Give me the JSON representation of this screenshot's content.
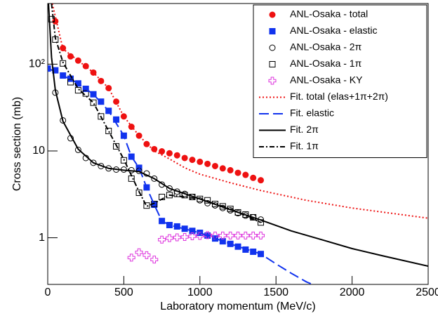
{
  "chart_data": {
    "type": "scatter",
    "x_label": "Laboratory momentum (MeV/c)",
    "y_label": "Cross section (mb)",
    "xlim": [
      0,
      2500
    ],
    "xticks": [
      0,
      500,
      1000,
      1500,
      2000,
      2500
    ],
    "ylim": [
      0.29,
      500
    ],
    "log_y": true,
    "yticks": [
      1,
      10,
      {
        "value": 100,
        "label": "10²"
      }
    ],
    "legend": "upper right",
    "series": [
      {
        "name": "ANL-Osaka - total",
        "color": "#ee1111",
        "marker": "circle-filled",
        "x": [
          50,
          100,
          150,
          200,
          250,
          300,
          350,
          400,
          450,
          500,
          550,
          600,
          650,
          700,
          750,
          800,
          850,
          900,
          950,
          1000,
          1050,
          1100,
          1150,
          1200,
          1250,
          1300,
          1350,
          1400
        ],
        "values": [
          312,
          153,
          123,
          110,
          95,
          80,
          64,
          53,
          37,
          25,
          19,
          15,
          12,
          10.5,
          9.9,
          9.4,
          8.9,
          8.3,
          7.9,
          7.5,
          7.1,
          6.7,
          6.3,
          6.0,
          5.6,
          5.3,
          4.9,
          4.6
        ]
      },
      {
        "name": "ANL-Osaka - elastic",
        "color": "#1133ee",
        "marker": "square-filled",
        "x": [
          0,
          50,
          100,
          150,
          200,
          250,
          300,
          350,
          400,
          450,
          500,
          550,
          600,
          650,
          700,
          750,
          800,
          850,
          900,
          950,
          1000,
          1050,
          1100,
          1150,
          1200,
          1250,
          1300,
          1350,
          1400
        ],
        "values": [
          89,
          85,
          74,
          68,
          60,
          52,
          45,
          37,
          29,
          23,
          15,
          8.6,
          6.4,
          3.8,
          2.4,
          1.56,
          1.4,
          1.35,
          1.27,
          1.2,
          1.14,
          1.06,
          0.98,
          0.91,
          0.85,
          0.79,
          0.73,
          0.69,
          0.65
        ]
      },
      {
        "name": "ANL-Osaka - 2π",
        "color": "#000000",
        "marker": "circle-open",
        "x": [
          50,
          100,
          150,
          200,
          250,
          300,
          350,
          400,
          450,
          500,
          550,
          600,
          650,
          700,
          750,
          800,
          850,
          900,
          950,
          1000,
          1050,
          1100,
          1150,
          1200,
          1250,
          1300,
          1350,
          1400
        ],
        "values": [
          47,
          22.5,
          14,
          10.3,
          8.3,
          7.3,
          6.7,
          6.3,
          6.1,
          6.1,
          6.0,
          5.9,
          5.5,
          4.8,
          4.1,
          3.7,
          3.4,
          3.2,
          2.95,
          2.7,
          2.5,
          2.36,
          2.2,
          2.07,
          1.92,
          1.8,
          1.72,
          1.62
        ]
      },
      {
        "name": "ANL-Osaka - 1π",
        "color": "#000000",
        "marker": "square-open",
        "x": [
          25,
          50,
          100,
          150,
          200,
          250,
          300,
          350,
          400,
          450,
          500,
          550,
          600,
          650,
          700,
          750,
          800,
          850,
          900,
          950,
          1000,
          1050,
          1100,
          1150,
          1200,
          1250,
          1300,
          1350,
          1400
        ],
        "values": [
          330,
          192,
          102,
          62,
          50,
          46,
          36,
          25,
          17,
          11.3,
          7.8,
          4.8,
          3.3,
          2.35,
          2.45,
          2.95,
          3.1,
          3.2,
          3.1,
          2.95,
          2.8,
          2.7,
          2.45,
          2.3,
          2.15,
          1.96,
          1.85,
          1.72,
          1.5
        ]
      },
      {
        "name": "ANL-Osaka - KY",
        "color": "#dd33dd",
        "marker": "cross-open",
        "x": [
          550,
          600,
          650,
          700,
          750,
          800,
          850,
          900,
          950,
          1000,
          1050,
          1100,
          1150,
          1200,
          1250,
          1300,
          1350,
          1400
        ],
        "values": [
          0.59,
          0.68,
          0.63,
          0.56,
          0.95,
          0.99,
          1.01,
          1.02,
          1.04,
          1.05,
          1.07,
          1.06,
          1.06,
          1.06,
          1.06,
          1.06,
          1.06,
          1.06
        ]
      },
      {
        "name": "Fit. total (elas+1π+2π)",
        "color": "#ee1111",
        "line": "dotted",
        "x": [
          30,
          100,
          200,
          300,
          400,
          500,
          600,
          700,
          800,
          900,
          1000,
          1200,
          1400,
          1700,
          2000,
          2500
        ],
        "values": [
          500,
          150,
          110,
          80,
          53,
          25,
          15,
          10,
          8.1,
          6.4,
          5.4,
          4.3,
          3.5,
          2.7,
          2.2,
          1.68
        ]
      },
      {
        "name": "Fit. elastic",
        "color": "#1133ee",
        "line": "dashed",
        "x": [
          0,
          100,
          200,
          300,
          400,
          500,
          550,
          600,
          650,
          700,
          750,
          800,
          1000,
          1200,
          1400,
          1500,
          1600,
          1700,
          1740
        ],
        "values": [
          90,
          74,
          60,
          45,
          29,
          15,
          8.6,
          6.4,
          3.8,
          2.4,
          1.56,
          1.4,
          1.14,
          0.85,
          0.65,
          0.5,
          0.39,
          0.31,
          0.29
        ]
      },
      {
        "name": "Fit. 2π",
        "color": "#000000",
        "line": "solid",
        "x": [
          5,
          25,
          50,
          100,
          200,
          300,
          400,
          500,
          600,
          700,
          800,
          1000,
          1200,
          1400,
          1600,
          1800,
          2000,
          2200,
          2500
        ],
        "values": [
          500,
          120,
          50,
          22,
          10.5,
          7.3,
          6.3,
          6.0,
          5.8,
          4.8,
          3.7,
          2.8,
          2.1,
          1.6,
          1.2,
          0.95,
          0.75,
          0.62,
          0.47
        ]
      },
      {
        "name": "Fit. 1π",
        "color": "#000000",
        "line": "dashdot",
        "x": [
          25,
          50,
          100,
          200,
          300,
          400,
          500,
          600,
          650,
          700,
          800,
          1000,
          1200,
          1400
        ],
        "values": [
          500,
          200,
          105,
          52,
          36,
          17,
          8,
          3.4,
          2.3,
          2.5,
          3.1,
          2.8,
          2.15,
          1.5
        ]
      }
    ]
  }
}
